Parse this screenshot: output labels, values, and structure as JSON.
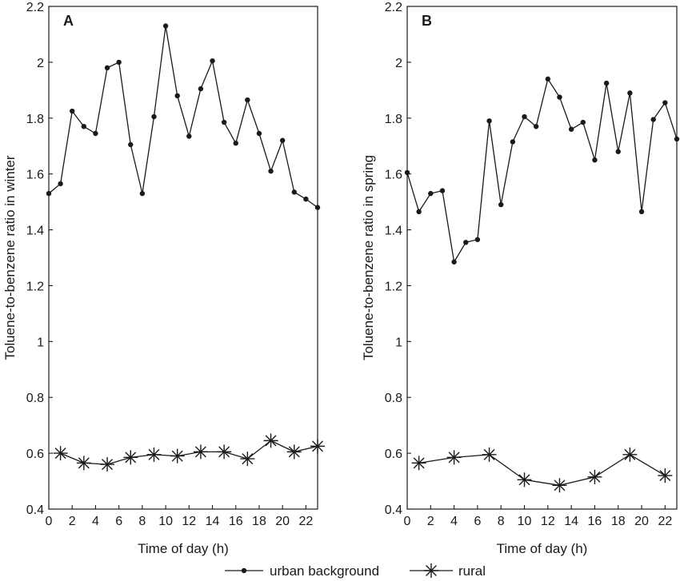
{
  "chart_data": [
    {
      "type": "line",
      "panel_label": "A",
      "xlabel": "Time of day (h)",
      "ylabel": "Toluene-to-benzene ratio in winter",
      "xlim": [
        0,
        23
      ],
      "ylim": [
        0.4,
        2.2
      ],
      "xticks": [
        0,
        2,
        4,
        6,
        8,
        10,
        12,
        14,
        16,
        18,
        20,
        22
      ],
      "xtick_labels": [
        "0",
        "2",
        "4",
        "6",
        "8",
        "10",
        "12",
        "14",
        "16",
        "18",
        "20",
        "22"
      ],
      "yticks": [
        0.4,
        0.6,
        0.8,
        1.0,
        1.2,
        1.4,
        1.6,
        1.8,
        2.0,
        2.2
      ],
      "ytick_labels": [
        "0.4",
        "0.6",
        "0.8",
        "1",
        "1.2",
        "1.4",
        "1.6",
        "1.8",
        "2",
        "2.2"
      ],
      "grid": false,
      "series": [
        {
          "name": "urban background",
          "marker": "dot",
          "x": [
            0,
            1,
            2,
            3,
            4,
            5,
            6,
            7,
            8,
            9,
            10,
            11,
            12,
            13,
            14,
            15,
            16,
            17,
            18,
            19,
            20,
            21,
            22,
            23
          ],
          "y": [
            1.53,
            1.565,
            1.825,
            1.77,
            1.745,
            1.98,
            2.0,
            1.705,
            1.53,
            1.805,
            2.13,
            1.88,
            1.735,
            1.905,
            2.005,
            1.785,
            1.71,
            1.865,
            1.745,
            1.61,
            1.72,
            1.535,
            1.51,
            1.48
          ]
        },
        {
          "name": "rural",
          "marker": "star",
          "x": [
            1,
            3,
            5,
            7,
            9,
            11,
            13,
            15,
            17,
            19,
            21,
            23
          ],
          "y": [
            0.6,
            0.565,
            0.56,
            0.585,
            0.595,
            0.59,
            0.605,
            0.605,
            0.58,
            0.645,
            0.605,
            0.625
          ]
        }
      ]
    },
    {
      "type": "line",
      "panel_label": "B",
      "xlabel": "Time of day (h)",
      "ylabel": "Toluene-to-benzene ratio in spring",
      "xlim": [
        0,
        23
      ],
      "ylim": [
        0.4,
        2.2
      ],
      "xticks": [
        0,
        2,
        4,
        6,
        8,
        10,
        12,
        14,
        16,
        18,
        20,
        22
      ],
      "xtick_labels": [
        "0",
        "2",
        "4",
        "6",
        "8",
        "10",
        "12",
        "14",
        "16",
        "18",
        "20",
        "22"
      ],
      "yticks": [
        0.4,
        0.6,
        0.8,
        1.0,
        1.2,
        1.4,
        1.6,
        1.8,
        2.0,
        2.2
      ],
      "ytick_labels": [
        "0.4",
        "0.6",
        "0.8",
        "1",
        "1.2",
        "1.4",
        "1.6",
        "1.8",
        "2",
        "2.2"
      ],
      "grid": false,
      "series": [
        {
          "name": "urban background",
          "marker": "dot",
          "x": [
            0,
            1,
            2,
            3,
            4,
            5,
            6,
            7,
            8,
            9,
            10,
            11,
            12,
            13,
            14,
            15,
            16,
            17,
            18,
            19,
            20,
            21,
            22,
            23
          ],
          "y": [
            1.605,
            1.465,
            1.53,
            1.54,
            1.285,
            1.355,
            1.365,
            1.79,
            1.49,
            1.715,
            1.805,
            1.77,
            1.94,
            1.875,
            1.76,
            1.785,
            1.65,
            1.925,
            1.68,
            1.89,
            1.465,
            1.795,
            1.855,
            1.725
          ]
        },
        {
          "name": "rural",
          "marker": "star",
          "x": [
            1,
            4,
            7,
            10,
            13,
            16,
            19,
            22
          ],
          "y": [
            0.565,
            0.585,
            0.595,
            0.505,
            0.485,
            0.515,
            0.595,
            0.52
          ]
        }
      ]
    }
  ],
  "legend": {
    "placement": "bottom-center",
    "items": [
      {
        "label": "urban background",
        "marker": "dot"
      },
      {
        "label": "rural",
        "marker": "star"
      }
    ]
  },
  "colors": {
    "line": "#1a1a1a",
    "background": "#ffffff"
  }
}
